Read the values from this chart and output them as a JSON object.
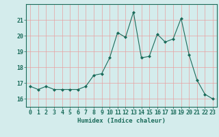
{
  "xlabel": "Humidex (Indice chaleur)",
  "ylabel": "",
  "x": [
    0,
    1,
    2,
    3,
    4,
    5,
    6,
    7,
    8,
    9,
    10,
    11,
    12,
    13,
    14,
    15,
    16,
    17,
    18,
    19,
    20,
    21,
    22,
    23
  ],
  "y": [
    16.8,
    16.6,
    16.8,
    16.6,
    16.6,
    16.6,
    16.6,
    16.8,
    17.5,
    17.6,
    18.6,
    20.2,
    19.9,
    21.5,
    18.6,
    18.7,
    20.1,
    19.6,
    19.8,
    21.1,
    18.8,
    17.2,
    16.3,
    16.0
  ],
  "line_color": "#1a6b5a",
  "marker": "D",
  "marker_size": 2.0,
  "bg_color": "#d4ecec",
  "grid_color_v": "#e8a0a0",
  "grid_color_h": "#e8a0a0",
  "ylim": [
    15.5,
    22.0
  ],
  "yticks": [
    16,
    17,
    18,
    19,
    20,
    21
  ],
  "xlim": [
    -0.5,
    23.5
  ],
  "label_fontsize": 6.5,
  "tick_fontsize": 6.0
}
